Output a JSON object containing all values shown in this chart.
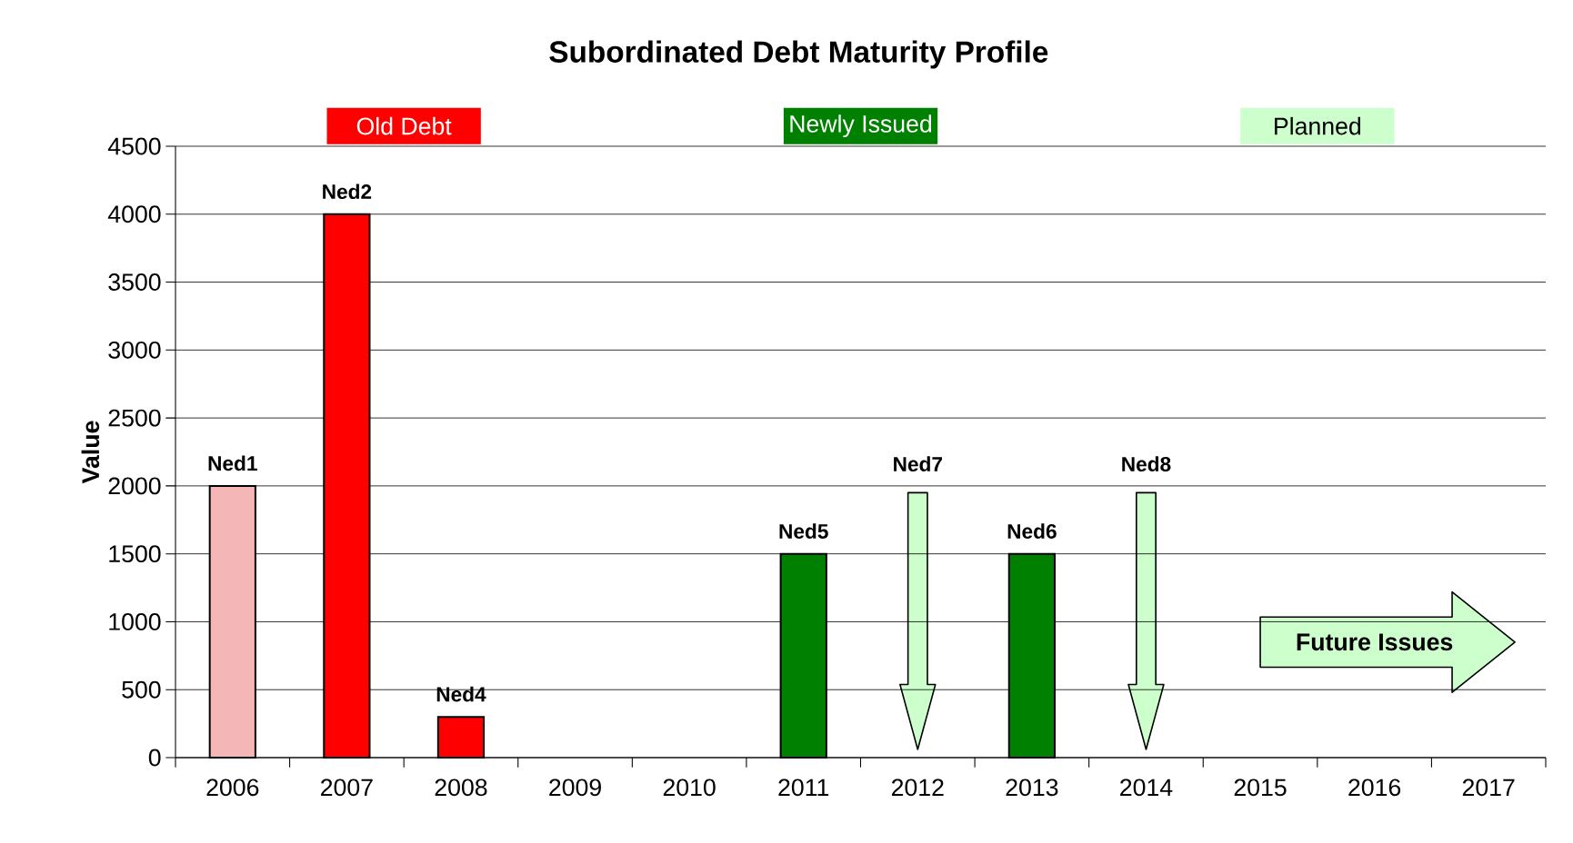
{
  "chart_data": {
    "type": "bar",
    "title": "Subordinated Debt Maturity Profile",
    "ylabel": "Value",
    "categories": [
      "2006",
      "2007",
      "2008",
      "2009",
      "2010",
      "2011",
      "2012",
      "2013",
      "2014",
      "2015",
      "2016",
      "2017"
    ],
    "series": [
      {
        "name": "Old Debt",
        "color": "#ff0000",
        "colors": [
          "#f4b6b6",
          "#ff0000",
          "#ff0000",
          null,
          null,
          null,
          null,
          null,
          null,
          null,
          null,
          null
        ],
        "values": [
          2000,
          4000,
          300,
          null,
          null,
          null,
          null,
          null,
          null,
          null,
          null,
          null
        ],
        "value_labels": [
          "Ned1",
          "Ned2",
          "Ned4",
          null,
          null,
          null,
          null,
          null,
          null,
          null,
          null,
          null
        ]
      },
      {
        "name": "Newly Issued",
        "color": "#008000",
        "values": [
          null,
          null,
          null,
          null,
          null,
          1500,
          null,
          1500,
          null,
          null,
          null,
          null
        ],
        "value_labels": [
          null,
          null,
          null,
          null,
          null,
          "Ned5",
          null,
          "Ned6",
          null,
          null,
          null,
          null
        ]
      }
    ],
    "annotations": [
      "Planned",
      "Ned7",
      "Ned8",
      "Future Issues"
    ],
    "ylim": [
      0,
      4500
    ],
    "yticks": [
      0,
      500,
      1000,
      1500,
      2000,
      2500,
      3000,
      3500,
      4000,
      4500
    ],
    "grid": "y",
    "legend": "top"
  }
}
